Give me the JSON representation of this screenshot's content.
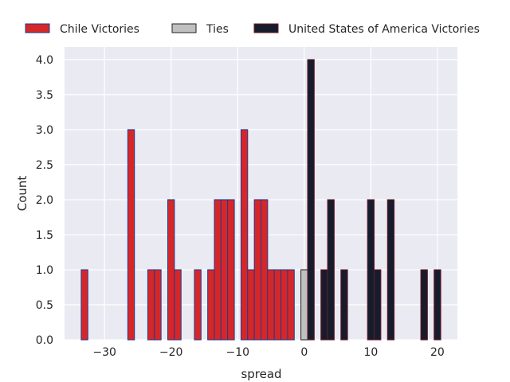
{
  "chart_data": {
    "type": "bar",
    "title": "",
    "xlabel": "spread",
    "ylabel": "Count",
    "xlim": [
      -36,
      23
    ],
    "ylim": [
      0,
      4.18
    ],
    "grid": true,
    "legend_placement": "top",
    "xticks": [
      -30,
      -20,
      -10,
      0,
      10,
      20
    ],
    "xtick_labels": [
      "−30",
      "−20",
      "−10",
      "0",
      "10",
      "20"
    ],
    "yticks": [
      0,
      0.5,
      1,
      1.5,
      2,
      2.5,
      3,
      3.5,
      4
    ],
    "ytick_labels": [
      "0.0",
      "0.5",
      "1.0",
      "1.5",
      "2.0",
      "2.5",
      "3.0",
      "3.5",
      "4.0"
    ],
    "series": [
      {
        "name": "Chile Victories",
        "color": "#d62728",
        "edge": "#1f3a93",
        "x": [
          -33,
          -26,
          -23,
          -22,
          -20,
          -19,
          -16,
          -14,
          -13,
          -12,
          -11,
          -9,
          -8,
          -7,
          -6,
          -5,
          -4,
          -3,
          -2
        ],
        "values": [
          1,
          3,
          1,
          1,
          2,
          1,
          1,
          1,
          2,
          2,
          2,
          3,
          1,
          2,
          2,
          1,
          1,
          1,
          1
        ]
      },
      {
        "name": "Ties",
        "color": "#c0c0c0",
        "edge": "#222222",
        "x": [
          0
        ],
        "values": [
          1
        ]
      },
      {
        "name": "United States of America Victories",
        "color": "#161c2c",
        "edge": "#6b1a2a",
        "x": [
          1,
          3,
          4,
          6,
          10,
          11,
          13,
          18,
          20
        ],
        "values": [
          4,
          1,
          2,
          1,
          2,
          1,
          2,
          1,
          1
        ]
      }
    ]
  }
}
